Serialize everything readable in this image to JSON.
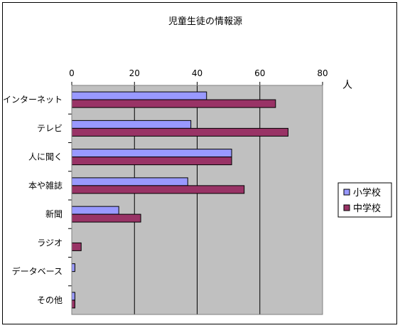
{
  "chart_data": {
    "type": "bar",
    "orientation": "horizontal",
    "title": "児童生徒の情報源",
    "unit_label": "人",
    "categories": [
      "インターネット",
      "テレビ",
      "人に聞く",
      "本や雑誌",
      "新聞",
      "ラジオ",
      "データベース",
      "その他"
    ],
    "series": [
      {
        "name": "小学校",
        "color": "#9999ff",
        "values": [
          43,
          38,
          51,
          37,
          15,
          0,
          1,
          1
        ]
      },
      {
        "name": "中学校",
        "color": "#993366",
        "values": [
          65,
          69,
          51,
          55,
          22,
          3,
          0,
          1
        ]
      }
    ],
    "xlim": [
      0,
      80
    ],
    "xticks": [
      0,
      20,
      40,
      60,
      80
    ],
    "grid": true,
    "legend_position": "right",
    "plot_background": "#c0c0c0"
  }
}
